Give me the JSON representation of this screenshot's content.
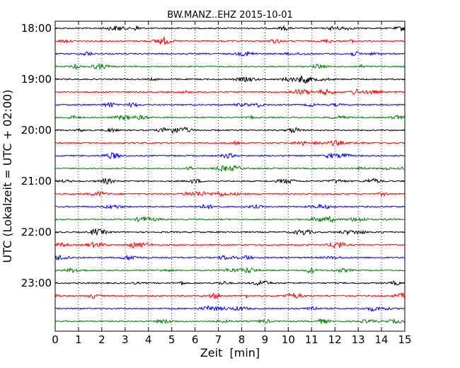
{
  "chart_data": {
    "type": "line",
    "title": "BW.MANZ..EHZ 2015-10-01",
    "xlabel": "Zeit  [min]",
    "ylabel": "UTC (Lokalzeit = UTC + 02:00)",
    "xlim": [
      0,
      15
    ],
    "x_ticks": [
      "0",
      "1",
      "2",
      "3",
      "4",
      "5",
      "6",
      "7",
      "8",
      "9",
      "10",
      "11",
      "12",
      "13",
      "14",
      "15"
    ],
    "y_tick_labels": [
      "18:00",
      "19:00",
      "20:00",
      "21:00",
      "22:00",
      "23:00"
    ],
    "grid": "vertical dotted",
    "trace_interval_minutes": 15,
    "trace_start": "18:00",
    "trace_count": 24,
    "color_cycle": [
      "#000000",
      "#ff0000",
      "#0000ff",
      "#008000"
    ]
  }
}
